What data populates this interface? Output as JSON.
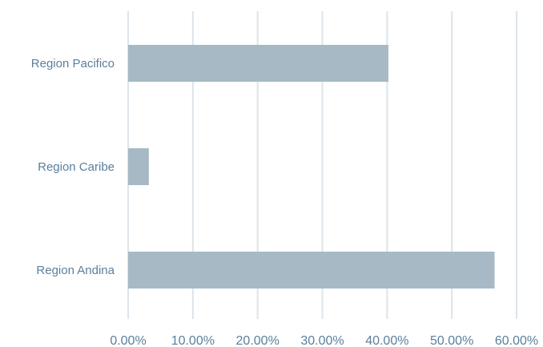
{
  "chart_data": {
    "type": "bar",
    "orientation": "horizontal",
    "categories": [
      "Region Pacifico",
      "Region Caribe",
      "Region Andina"
    ],
    "values": [
      0.402,
      0.032,
      0.566
    ],
    "xlim": [
      0,
      0.6
    ],
    "xticks": [
      0,
      0.1,
      0.2,
      0.3,
      0.4,
      0.5,
      0.6
    ],
    "xtick_labels": [
      "0.00%",
      "10.00%",
      "20.00%",
      "30.00%",
      "40.00%",
      "50.00%",
      "60.00%"
    ],
    "grid": "vertical",
    "title": "",
    "xlabel": "",
    "ylabel": "",
    "colors": {
      "bar": "#a6b9c5",
      "grid": "#dce4ea",
      "label": "#5b7f9c"
    }
  }
}
